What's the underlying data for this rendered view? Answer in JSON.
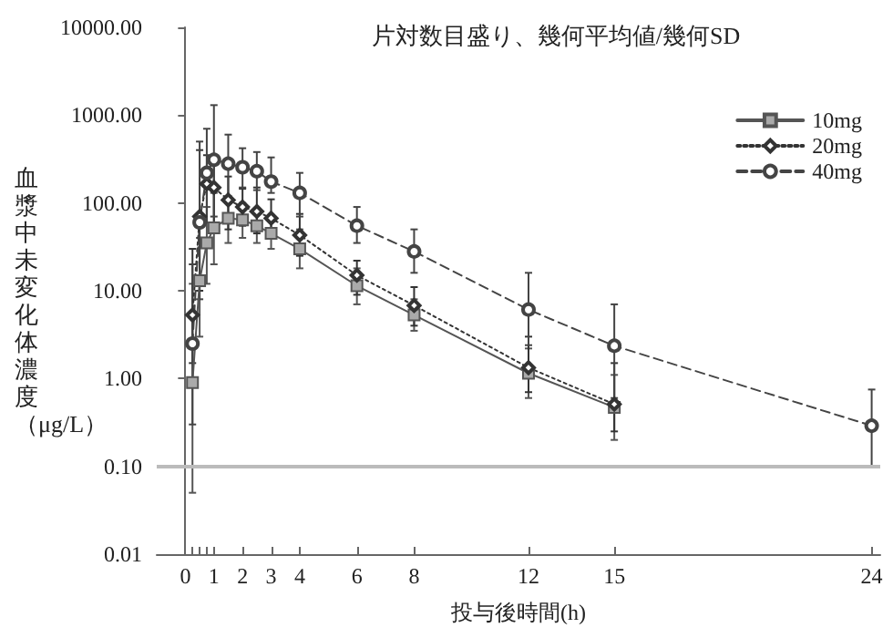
{
  "chart_data": {
    "type": "line",
    "title": "片対数目盛り、幾何平均値/幾何SD",
    "xlabel": "投与後時間(h)",
    "ylabel": "血漿中未変化体濃度（μg/L）",
    "log": "y",
    "grid": false,
    "legend": "top right",
    "xlim": [
      -1,
      24.3
    ],
    "ylim": [
      0.01,
      10000
    ],
    "xticks": [
      0,
      {
        "value": 0.25,
        "label": null
      },
      {
        "value": 0.5,
        "label": null
      },
      {
        "value": 0.75,
        "label": null
      },
      1,
      2,
      3,
      4,
      6,
      8,
      12,
      15,
      24
    ],
    "yticks": [
      {
        "value": 0.01,
        "label": "0.01"
      },
      {
        "value": 0.1,
        "label": "0.10"
      },
      {
        "value": 1,
        "label": "1.00"
      },
      {
        "value": 10,
        "label": "10.00"
      },
      {
        "value": 100,
        "label": "100.00"
      },
      {
        "value": 1000,
        "label": "1000.00"
      },
      {
        "value": 10000,
        "label": "10000.00"
      }
    ],
    "ref_lines": [
      {
        "axis": "y",
        "value": 0.1,
        "color": "#bbbbbb"
      }
    ],
    "series": [
      {
        "name": "10mg",
        "color": "#555555",
        "marker": "square",
        "line_style": "solid",
        "x": [
          0.25,
          0.5,
          0.75,
          1,
          1.5,
          2,
          2.5,
          3,
          4,
          6,
          8,
          12,
          15
        ],
        "values": [
          0.9,
          13,
          35,
          52,
          67,
          64,
          55,
          45,
          30,
          11.4,
          5.3,
          1.15,
          0.47
        ],
        "errors": [
          [
            0.05,
            12
          ],
          [
            3,
            40
          ],
          [
            12,
            90
          ],
          [
            20,
            130
          ],
          [
            35,
            120
          ],
          [
            40,
            100
          ],
          [
            35,
            85
          ],
          [
            30,
            70
          ],
          [
            18,
            50
          ],
          [
            7,
            18
          ],
          [
            3.5,
            8
          ],
          [
            0.6,
            2.2
          ],
          [
            0.2,
            1.1
          ]
        ]
      },
      {
        "name": "20mg",
        "color": "#333333",
        "marker": "diamond",
        "line_style": "dotted",
        "x": [
          0.25,
          0.5,
          0.75,
          1,
          1.5,
          2,
          2.5,
          3,
          4,
          6,
          8,
          12,
          15
        ],
        "values": [
          5.3,
          70,
          165,
          150,
          108,
          90,
          80,
          67,
          43,
          15,
          6.8,
          1.33,
          0.51
        ],
        "errors": [
          [
            1.5,
            30
          ],
          [
            10,
            400
          ],
          [
            60,
            350
          ],
          [
            50,
            300
          ],
          [
            50,
            200
          ],
          [
            55,
            145
          ],
          [
            45,
            150
          ],
          [
            40,
            110
          ],
          [
            25,
            75
          ],
          [
            9,
            22
          ],
          [
            4,
            11
          ],
          [
            0.7,
            3
          ],
          [
            0.25,
            1.5
          ]
        ]
      },
      {
        "name": "40mg",
        "color": "#444444",
        "marker": "circle",
        "line_style": "dashed",
        "x": [
          0.25,
          0.5,
          0.75,
          1,
          1.5,
          2,
          2.5,
          3,
          4,
          6,
          8,
          12,
          15,
          24
        ],
        "values": [
          2.5,
          60,
          220,
          310,
          280,
          255,
          230,
          175,
          130,
          55,
          28,
          6.1,
          2.36,
          0.29
        ],
        "errors": [
          [
            0.3,
            20
          ],
          [
            8,
            500
          ],
          [
            60,
            700
          ],
          [
            70,
            1300
          ],
          [
            100,
            600
          ],
          [
            150,
            420
          ],
          [
            140,
            380
          ],
          [
            130,
            330
          ],
          [
            70,
            220
          ],
          [
            35,
            90
          ],
          [
            16,
            50
          ],
          [
            2.4,
            16
          ],
          [
            0.6,
            7
          ],
          [
            0.1,
            0.75
          ]
        ]
      }
    ]
  }
}
